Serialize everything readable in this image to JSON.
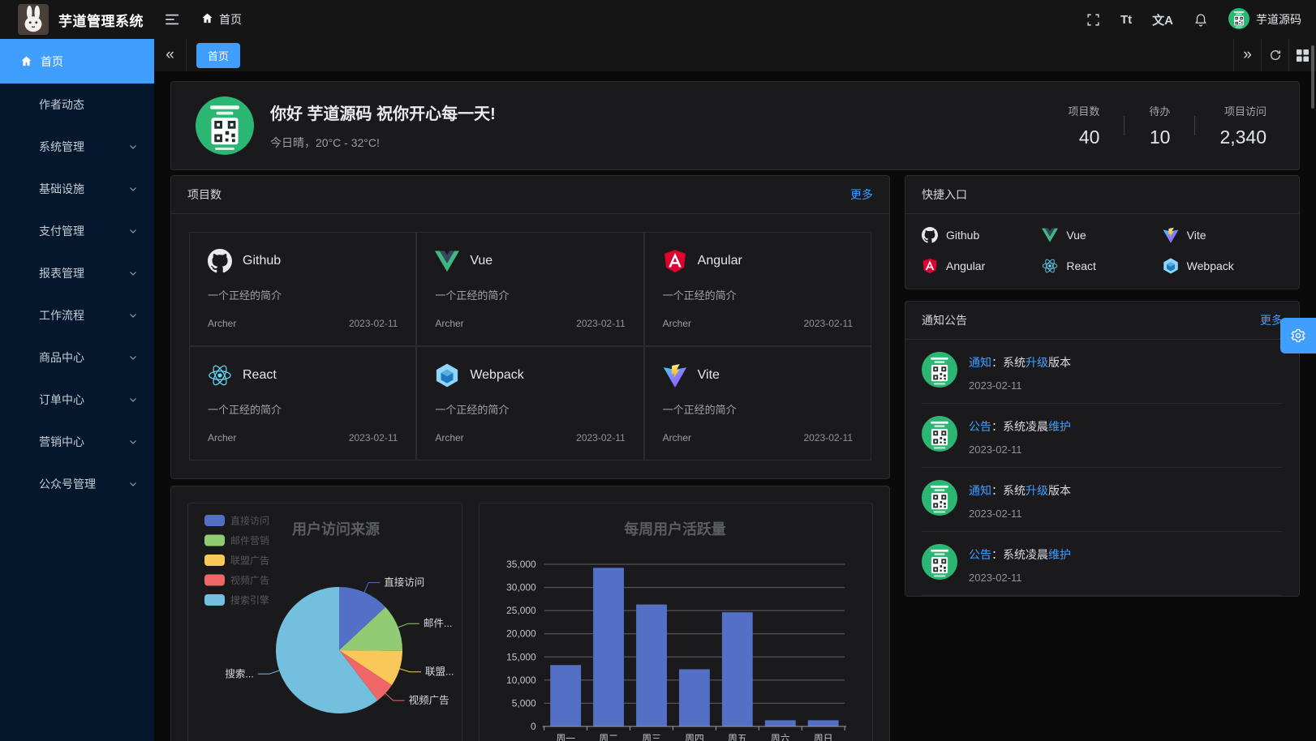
{
  "app": {
    "title": "芋道管理系统",
    "breadcrumb_home": "首页",
    "user_name": "芋道源码"
  },
  "glyphs": {
    "collapse": "«",
    "expand": "»",
    "font_size": "Tt",
    "translate": "文A"
  },
  "colors": {
    "accent": "#409eff",
    "sidebar_bg": "#04172c",
    "avatar_green": "#2bb673",
    "bar": "#5470c6"
  },
  "sidebar": {
    "items": [
      {
        "key": "home",
        "label": "首页",
        "active": true,
        "icon": "home",
        "arrow": false
      },
      {
        "key": "author-news",
        "label": "作者动态",
        "active": false,
        "icon": null,
        "arrow": false
      },
      {
        "key": "system",
        "label": "系统管理",
        "active": false,
        "icon": null,
        "arrow": true
      },
      {
        "key": "infra",
        "label": "基础设施",
        "active": false,
        "icon": null,
        "arrow": true
      },
      {
        "key": "pay",
        "label": "支付管理",
        "active": false,
        "icon": null,
        "arrow": true
      },
      {
        "key": "report",
        "label": "报表管理",
        "active": false,
        "icon": null,
        "arrow": true
      },
      {
        "key": "workflow",
        "label": "工作流程",
        "active": false,
        "icon": null,
        "arrow": true
      },
      {
        "key": "product",
        "label": "商品中心",
        "active": false,
        "icon": null,
        "arrow": true
      },
      {
        "key": "order",
        "label": "订单中心",
        "active": false,
        "icon": null,
        "arrow": true
      },
      {
        "key": "marketing",
        "label": "营销中心",
        "active": false,
        "icon": null,
        "arrow": true
      },
      {
        "key": "mp",
        "label": "公众号管理",
        "active": false,
        "icon": null,
        "arrow": true
      }
    ]
  },
  "tabbar": {
    "tabs": [
      {
        "label": "首页",
        "active": true
      }
    ]
  },
  "hero": {
    "greeting": "你好 芋道源码 祝你开心每一天!",
    "weather": "今日晴，20°C - 32°C!",
    "stats": [
      {
        "label": "项目数",
        "value": "40"
      },
      {
        "label": "待办",
        "value": "10"
      },
      {
        "label": "项目访问",
        "value": "2,340"
      }
    ]
  },
  "projects": {
    "title": "项目数",
    "more": "更多",
    "desc": "一个正经的简介",
    "author": "Archer",
    "date": "2023-02-11",
    "items": [
      {
        "name": "Github",
        "icon": "github"
      },
      {
        "name": "Vue",
        "icon": "vue"
      },
      {
        "name": "Angular",
        "icon": "angular"
      },
      {
        "name": "React",
        "icon": "react"
      },
      {
        "name": "Webpack",
        "icon": "webpack"
      },
      {
        "name": "Vite",
        "icon": "vite"
      }
    ]
  },
  "shortcuts": {
    "title": "快捷入口",
    "items": [
      {
        "name": "Github",
        "icon": "github"
      },
      {
        "name": "Vue",
        "icon": "vue"
      },
      {
        "name": "Vite",
        "icon": "vite"
      },
      {
        "name": "Angular",
        "icon": "angular"
      },
      {
        "name": "React",
        "icon": "react"
      },
      {
        "name": "Webpack",
        "icon": "webpack"
      }
    ]
  },
  "notices": {
    "title": "通知公告",
    "more": "更多",
    "items": [
      {
        "tag": "通知",
        "text": "：系统",
        "highlight": "升级",
        "suffix": "版本",
        "date": "2023-02-11"
      },
      {
        "tag": "公告",
        "text": "：系统凌晨",
        "highlight": "维护",
        "suffix": "",
        "date": "2023-02-11"
      },
      {
        "tag": "通知",
        "text": "：系统",
        "highlight": "升级",
        "suffix": "版本",
        "date": "2023-02-11"
      },
      {
        "tag": "公告",
        "text": "：系统凌晨",
        "highlight": "维护",
        "suffix": "",
        "date": "2023-02-11"
      }
    ]
  },
  "chart_data": [
    {
      "type": "pie",
      "title": "用户访问来源",
      "legend": [
        "直接访问",
        "邮件营销",
        "联盟广告",
        "视频广告",
        "搜索引擎"
      ],
      "legend_position": "top-left",
      "series": [
        {
          "name": "直接访问",
          "value": 335,
          "label": "直接访问"
        },
        {
          "name": "邮件营销",
          "value": 310,
          "label": "邮件..."
        },
        {
          "name": "联盟广告",
          "value": 234,
          "label": "联盟..."
        },
        {
          "name": "视频广告",
          "value": 135,
          "label": "视频广告"
        },
        {
          "name": "搜索引擎",
          "value": 1548,
          "label": "搜索..."
        }
      ],
      "colors": [
        "#5470c6",
        "#91cc75",
        "#fac858",
        "#ee6666",
        "#73c0de"
      ]
    },
    {
      "type": "bar",
      "title": "每周用户活跃量",
      "categories": [
        "周一",
        "周二",
        "周三",
        "周四",
        "周五",
        "周六",
        "周日"
      ],
      "values": [
        13253,
        34235,
        26321,
        12340,
        24643,
        1322,
        1324
      ],
      "xlabel": "",
      "ylabel": "",
      "ylim": [
        0,
        35000
      ],
      "ytick_step": 5000,
      "grid": true,
      "bar_color": "#5470c6"
    }
  ]
}
